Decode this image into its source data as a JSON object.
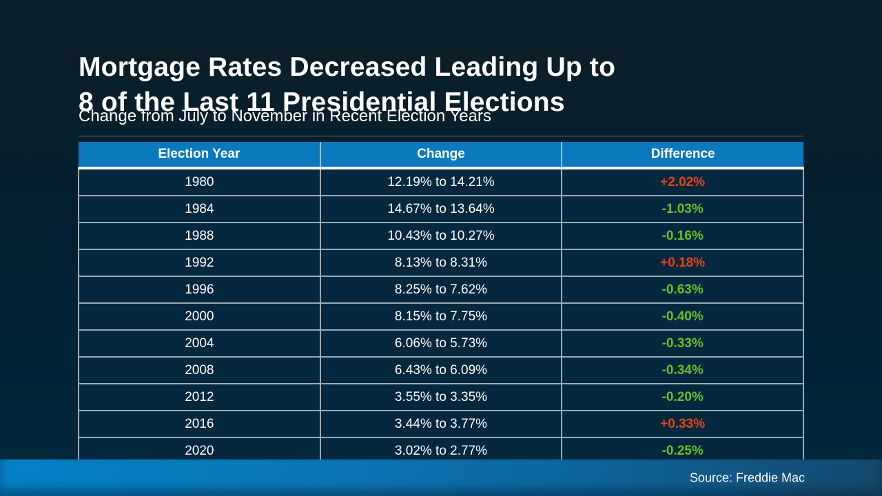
{
  "slide": {
    "title_line1": "Mortgage Rates Decreased Leading Up to",
    "title_line2": "8 of the Last 11 Presidential Elections",
    "subtitle": "Change from July to November in Recent Election Years",
    "source": "Source: Freddie Mac"
  },
  "colors": {
    "header_blue": "#0b79bd",
    "row_navy": "#05283e",
    "increase_red": "#ea4411",
    "decrease_green": "#69c120",
    "footer_blue_left": "#0581c9",
    "footer_blue_right": "#16486b"
  },
  "chart_data": {
    "type": "table",
    "title": "Mortgage Rates Decreased Leading Up to 8 of the Last 11 Presidential Elections",
    "subtitle": "Change from July to November in Recent Election Years",
    "source": "Source: Freddie Mac",
    "columns": [
      "Election Year",
      "Change",
      "Difference"
    ],
    "rows": [
      {
        "year": "1980",
        "change": "12.19% to 14.21%",
        "difference": "+2.02%",
        "direction": "increase"
      },
      {
        "year": "1984",
        "change": "14.67% to 13.64%",
        "difference": "-1.03%",
        "direction": "decrease"
      },
      {
        "year": "1988",
        "change": "10.43% to 10.27%",
        "difference": "-0.16%",
        "direction": "decrease"
      },
      {
        "year": "1992",
        "change": "8.13% to 8.31%",
        "difference": "+0.18%",
        "direction": "increase"
      },
      {
        "year": "1996",
        "change": "8.25% to 7.62%",
        "difference": "-0.63%",
        "direction": "decrease"
      },
      {
        "year": "2000",
        "change": "8.15% to 7.75%",
        "difference": "-0.40%",
        "direction": "decrease"
      },
      {
        "year": "2004",
        "change": "6.06% to 5.73%",
        "difference": "-0.33%",
        "direction": "decrease"
      },
      {
        "year": "2008",
        "change": "6.43% to 6.09%",
        "difference": "-0.34%",
        "direction": "decrease"
      },
      {
        "year": "2012",
        "change": "3.55% to 3.35%",
        "difference": "-0.20%",
        "direction": "decrease"
      },
      {
        "year": "2016",
        "change": "3.44% to 3.77%",
        "difference": "+0.33%",
        "direction": "increase"
      },
      {
        "year": "2020",
        "change": "3.02% to 2.77%",
        "difference": "-0.25%",
        "direction": "decrease"
      }
    ]
  }
}
